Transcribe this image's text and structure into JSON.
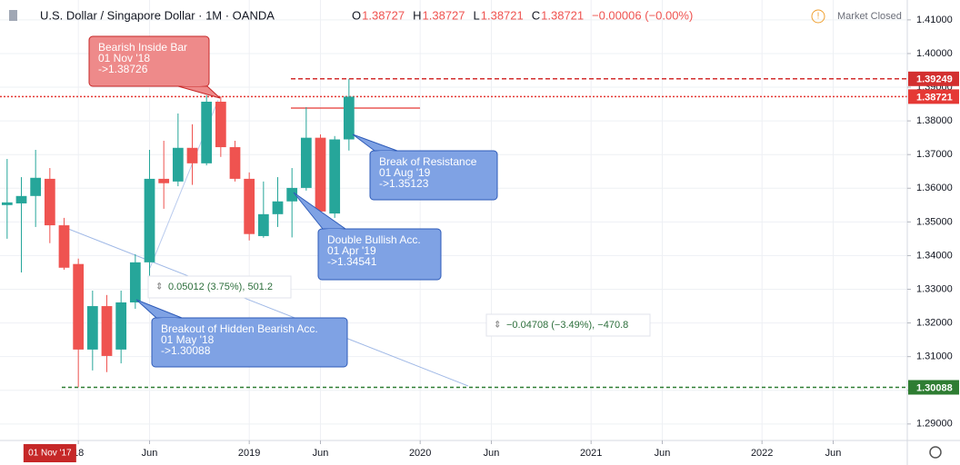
{
  "header": {
    "symbol": "U.S. Dollar / Singapore Dollar · 1M · OANDA",
    "ohlc": [
      {
        "key": "O",
        "value": "1.38727"
      },
      {
        "key": "H",
        "value": "1.38727"
      },
      {
        "key": "L",
        "value": "1.38721"
      },
      {
        "key": "C",
        "value": "1.38721"
      }
    ],
    "change": "−0.00006 (−0.00%)",
    "status": "Market Closed"
  },
  "chart_data": {
    "type": "candlestick",
    "x": [
      -5,
      -4,
      -3,
      -2,
      -1,
      0,
      1,
      2,
      3,
      4,
      5,
      6,
      7,
      8,
      9,
      10,
      11,
      12,
      13,
      14,
      15,
      16,
      17,
      18,
      19
    ],
    "open": [
      1.355,
      1.3555,
      1.3577,
      1.3628,
      1.349,
      1.3375,
      1.3121,
      1.325,
      1.3121,
      1.3261,
      1.338,
      1.3628,
      1.362,
      1.372,
      1.3674,
      1.3857,
      1.3722,
      1.3628,
      1.3458,
      1.3523,
      1.3561,
      1.3601,
      1.375,
      1.3525,
      1.3745
    ],
    "high": [
      1.3687,
      1.3633,
      1.3714,
      1.366,
      1.3512,
      1.3391,
      1.3296,
      1.3283,
      1.3296,
      1.3404,
      1.3714,
      1.3741,
      1.3822,
      1.379,
      1.3876,
      1.3873,
      1.3741,
      1.3647,
      1.362,
      1.3633,
      1.366,
      1.3841,
      1.376,
      1.3755,
      1.3925
    ],
    "low": [
      1.345,
      1.335,
      1.3485,
      1.3437,
      1.3358,
      1.3009,
      1.3059,
      1.3054,
      1.308,
      1.3242,
      1.3325,
      1.3539,
      1.3606,
      1.361,
      1.3668,
      1.3693,
      1.362,
      1.3445,
      1.3453,
      1.3485,
      1.3454,
      1.3593,
      1.352,
      1.3512,
      1.3712
    ],
    "close": [
      1.3558,
      1.3577,
      1.3631,
      1.349,
      1.3364,
      1.3121,
      1.325,
      1.3102,
      1.3261,
      1.338,
      1.3628,
      1.3615,
      1.372,
      1.3674,
      1.3857,
      1.3722,
      1.3628,
      1.3464,
      1.3523,
      1.3561,
      1.3601,
      1.375,
      1.3531,
      1.3745,
      1.3872
    ],
    "up_color": "#26a69a",
    "down_color": "#ef5350",
    "xlim": [
      -5.5,
      58.2
    ],
    "xticks": [
      {
        "value": 0,
        "label": "18"
      },
      {
        "value": 5,
        "label": "Jun"
      },
      {
        "value": 12,
        "label": "2019"
      },
      {
        "value": 17,
        "label": "Jun"
      },
      {
        "value": 24,
        "label": "2020"
      },
      {
        "value": 29,
        "label": "Jun"
      },
      {
        "value": 36,
        "label": "2021"
      },
      {
        "value": 41,
        "label": "Jun"
      },
      {
        "value": 48,
        "label": "2022"
      },
      {
        "value": 53,
        "label": "Jun"
      }
    ],
    "ylim": [
      1.2851,
      1.4159
    ],
    "yticks": [
      {
        "value": 1.29,
        "label": "1.29000"
      },
      {
        "value": 1.3,
        "label": "1.30000"
      },
      {
        "value": 1.31,
        "label": "1.31000"
      },
      {
        "value": 1.32,
        "label": "1.32000"
      },
      {
        "value": 1.33,
        "label": "1.33000"
      },
      {
        "value": 1.34,
        "label": "1.34000"
      },
      {
        "value": 1.35,
        "label": "1.35000"
      },
      {
        "value": 1.36,
        "label": "1.36000"
      },
      {
        "value": 1.37,
        "label": "1.37000"
      },
      {
        "value": 1.38,
        "label": "1.38000"
      },
      {
        "value": 1.39,
        "label": "1.39000"
      },
      {
        "value": 1.4,
        "label": "1.40000"
      },
      {
        "value": 1.41,
        "label": "1.41000"
      }
    ],
    "grid": true,
    "price_lines": [
      {
        "value": 1.39249,
        "color": "#d32f2f"
      },
      {
        "value": 1.38721,
        "color": "#e53935"
      },
      {
        "value": 1.30088,
        "color": "#2e7d32"
      }
    ],
    "crosshair_label": "01 Nov '17",
    "annotations": [
      {
        "lines": [
          "Bearish Inside Bar",
          "01 Nov '18",
          "->1.38726"
        ]
      },
      {
        "lines": [
          "Breakout of Hidden Bearish Acc.",
          "01 May '18",
          "->1.30088"
        ]
      },
      {
        "lines": [
          "Double Bullish Acc.",
          "01 Apr '19",
          "->1.34541"
        ]
      },
      {
        "lines": [
          "Break of Resistance",
          "01 Aug '19",
          "->1.35123"
        ]
      }
    ],
    "measures": [
      "0.05012 (3.75%), 501.2",
      "−0.04708 (−3.49%), −470.8"
    ]
  }
}
